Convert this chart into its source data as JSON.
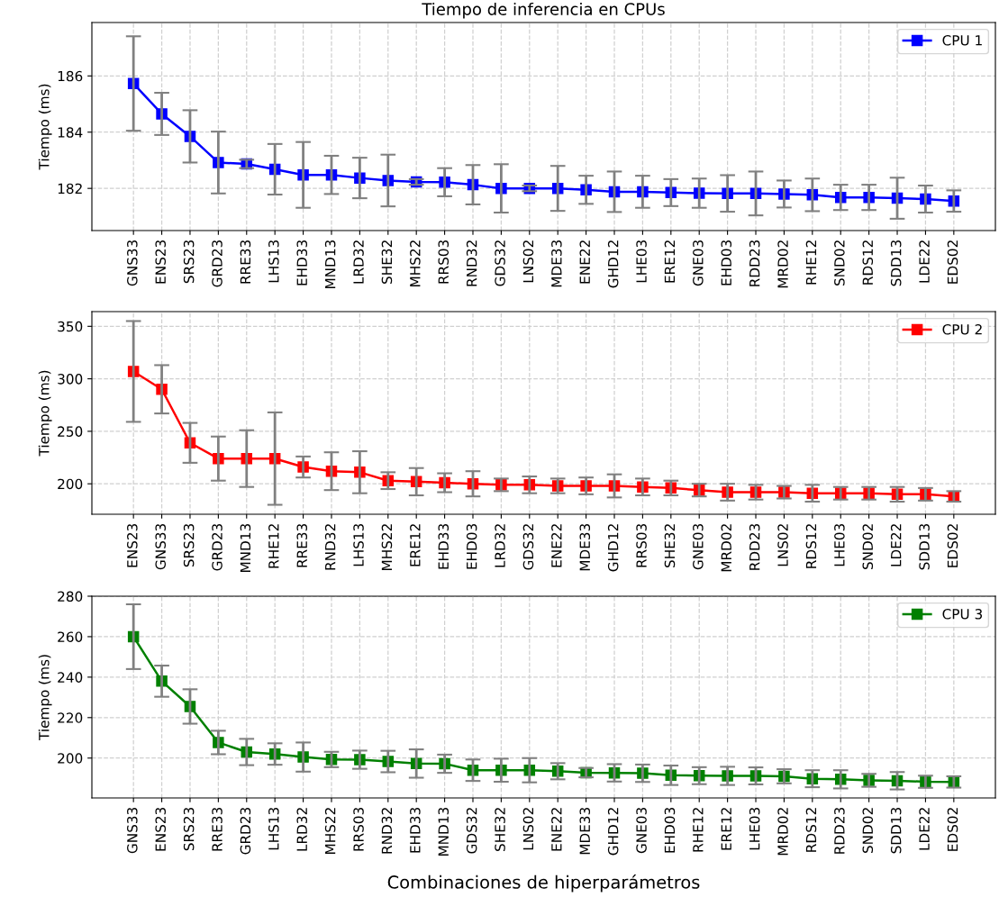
{
  "chart_data": [
    {
      "type": "line",
      "title": "Tiempo de inferencia en CPUs",
      "ylabel": "Tiempo (ms)",
      "categories": [
        "GNS33",
        "ENS23",
        "SRS23",
        "GRD23",
        "RRE33",
        "LHS13",
        "EHD33",
        "MND13",
        "LRD32",
        "SHE32",
        "MHS22",
        "RRS03",
        "RND32",
        "GDS32",
        "LNS02",
        "MDE33",
        "ENE22",
        "GHD12",
        "LHE03",
        "ERE12",
        "GNE03",
        "EHD03",
        "RDD23",
        "MRD02",
        "RHE12",
        "SND02",
        "RDS12",
        "SDD13",
        "LDE22",
        "EDS02"
      ],
      "series": [
        {
          "name": "CPU 1",
          "color": "#0000ff",
          "values": [
            185.73,
            184.65,
            183.85,
            182.92,
            182.87,
            182.68,
            182.48,
            182.48,
            182.37,
            182.28,
            182.23,
            182.22,
            182.13,
            182.0,
            182.0,
            182.0,
            181.95,
            181.88,
            181.88,
            181.85,
            181.83,
            181.82,
            181.82,
            181.8,
            181.77,
            181.68,
            181.68,
            181.65,
            181.62,
            181.55
          ],
          "errors": [
            1.68,
            0.75,
            0.93,
            1.1,
            0.15,
            0.9,
            1.17,
            0.68,
            0.72,
            0.92,
            0.1,
            0.5,
            0.7,
            0.86,
            0.1,
            0.8,
            0.5,
            0.72,
            0.57,
            0.48,
            0.52,
            0.65,
            0.78,
            0.48,
            0.58,
            0.45,
            0.45,
            0.73,
            0.48,
            0.38
          ]
        }
      ],
      "ylim": [
        180.5,
        187.9
      ],
      "yticks": [
        182,
        184,
        186
      ],
      "grid": true,
      "legend": "top right",
      "marker": "square",
      "line_style": "solid"
    },
    {
      "type": "line",
      "ylabel": "Tiempo (ms)",
      "categories": [
        "ENS23",
        "GNS33",
        "SRS23",
        "GRD23",
        "MND13",
        "RHE12",
        "RRE33",
        "RND32",
        "LHS13",
        "MHS22",
        "ERE12",
        "EHD33",
        "EHD03",
        "LRD32",
        "GDS32",
        "ENE22",
        "MDE33",
        "GHD12",
        "RRS03",
        "SHE32",
        "GNE03",
        "MRD02",
        "RDD23",
        "LNS02",
        "RDS12",
        "LHE03",
        "SND02",
        "LDE22",
        "SDD13",
        "EDS02"
      ],
      "series": [
        {
          "name": "CPU 2",
          "color": "#ff0000",
          "values": [
            307,
            290,
            239,
            224,
            224,
            224,
            216,
            212,
            211,
            203,
            202,
            201,
            200,
            199,
            199,
            198,
            198,
            198,
            197,
            196,
            194,
            192,
            192,
            192,
            191,
            191,
            191,
            190,
            190,
            188
          ],
          "errors": [
            48,
            23,
            19,
            21,
            27,
            44,
            10,
            18,
            20,
            8,
            13,
            9,
            12,
            6,
            8,
            7,
            8,
            11,
            8,
            7,
            6,
            8,
            7,
            6,
            8,
            6,
            6,
            7,
            6,
            5
          ]
        }
      ],
      "ylim": [
        171,
        364
      ],
      "yticks": [
        200,
        250,
        300,
        350
      ],
      "grid": true,
      "legend": "top right",
      "marker": "square",
      "line_style": "solid"
    },
    {
      "type": "line",
      "ylabel": "Tiempo (ms)",
      "xlabel": "Combinaciones de hiperparámetros",
      "categories": [
        "GNS33",
        "ENS23",
        "SRS23",
        "RRE33",
        "GRD23",
        "LHS13",
        "LRD32",
        "MHS22",
        "RRS03",
        "RND32",
        "EHD33",
        "MND13",
        "GDS32",
        "SHE32",
        "LNS02",
        "ENE22",
        "MDE33",
        "GHD12",
        "GNE03",
        "EHD03",
        "RHE12",
        "ERE12",
        "LHE03",
        "MRD02",
        "RDS12",
        "RDD23",
        "SND02",
        "SDD13",
        "LDE22",
        "EDS02"
      ],
      "series": [
        {
          "name": "CPU 3",
          "color": "#008000",
          "values": [
            260,
            238,
            225.5,
            207.7,
            203,
            202,
            200.5,
            199.3,
            199.2,
            198.3,
            197.3,
            197.2,
            194,
            194,
            194,
            193.5,
            192.8,
            192.7,
            192.5,
            191.5,
            191.3,
            191.2,
            191.2,
            191,
            189.8,
            189.5,
            189,
            188.8,
            188.3,
            188.2
          ],
          "errors": [
            16,
            7.7,
            8.5,
            5.8,
            6.5,
            5.3,
            7.2,
            3.8,
            4.5,
            5.3,
            7,
            4.5,
            5.3,
            5.7,
            6,
            4,
            2.3,
            4.3,
            4.3,
            4.8,
            4.2,
            4.5,
            4.2,
            3.5,
            4.2,
            4.5,
            3.2,
            4.3,
            3,
            2.8
          ]
        }
      ],
      "ylim": [
        180.3,
        280
      ],
      "yticks": [
        200,
        220,
        240,
        260,
        280
      ],
      "grid": true,
      "legend": "top right",
      "marker": "square",
      "line_style": "solid"
    }
  ]
}
